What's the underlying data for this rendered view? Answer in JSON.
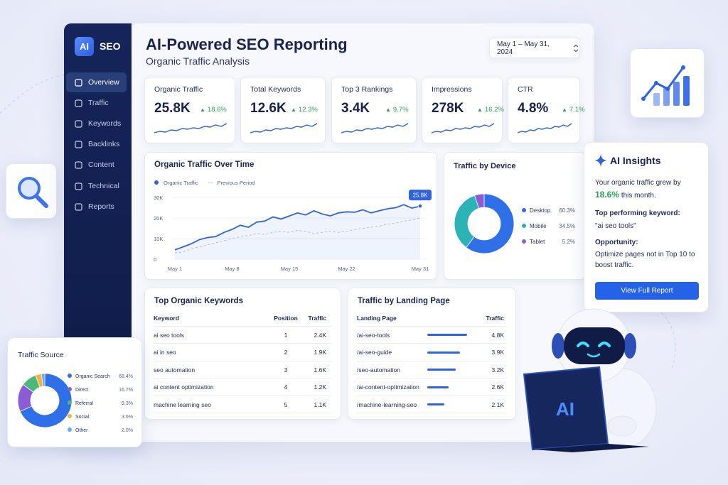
{
  "sidebar": {
    "logo": "AI",
    "brand": "SEO",
    "nav": [
      "Overview",
      "Traffic",
      "Keywords",
      "Backlinks",
      "Content",
      "Technical",
      "Reports"
    ]
  },
  "header": {
    "title": "AI-Powered SEO Reporting",
    "subtitle": "Organic Traffic Analysis",
    "date_range": "May 1 – May 31, 2024"
  },
  "kpis": [
    {
      "label": "Organic Traffic",
      "value": "25.8K",
      "change": "18.6%"
    },
    {
      "label": "Total Keywords",
      "value": "12.6K",
      "change": "12.3%"
    },
    {
      "label": "Top 3 Rankings",
      "value": "3.4K",
      "change": "9.7%"
    },
    {
      "label": "Impressions",
      "value": "278K",
      "change": "16.2%"
    },
    {
      "label": "CTR",
      "value": "4.8%",
      "change": "7.1%"
    }
  ],
  "chart_data": [
    {
      "type": "line",
      "title": "Organic Traffic Over Time",
      "categories": [
        "May 1",
        null,
        null,
        null,
        null,
        null,
        null,
        "May 8",
        null,
        null,
        null,
        null,
        null,
        null,
        "May 15",
        null,
        null,
        null,
        null,
        null,
        null,
        "May 22",
        null,
        null,
        null,
        null,
        null,
        null,
        null,
        null,
        "May 31"
      ],
      "series": [
        {
          "name": "Organic Traffic",
          "color": "#2f63e0",
          "values": [
            4500,
            6000,
            7500,
            9500,
            10500,
            11000,
            13000,
            14500,
            16500,
            15500,
            18000,
            18500,
            20500,
            19500,
            21000,
            22500,
            21500,
            23500,
            22000,
            21000,
            22500,
            23000,
            22800,
            24000,
            22500,
            23500,
            24500,
            25000,
            26500,
            24800,
            25800
          ]
        },
        {
          "name": "Previous Period",
          "color": "#b5bccc",
          "dashed": true,
          "values": [
            3000,
            3500,
            5000,
            6000,
            7000,
            8000,
            9000,
            10000,
            11000,
            11500,
            12500,
            12000,
            13000,
            13500,
            13000,
            14000,
            13500,
            12500,
            13000,
            13500,
            13000,
            13500,
            14500,
            15000,
            15500,
            16000,
            17000,
            17500,
            18500,
            19000,
            20000
          ]
        }
      ],
      "annotation": "25.8K",
      "ylim": [
        0,
        30000
      ],
      "yticks": [
        0,
        {
          "value": 10000,
          "label": "10K"
        },
        {
          "value": 20000,
          "label": "20K"
        },
        {
          "value": 30000,
          "label": "30K"
        }
      ],
      "grid": true
    },
    {
      "type": "pie",
      "title": "Traffic by Device",
      "categories": [
        "Desktop",
        "Mobile",
        "Tablet"
      ],
      "values": [
        60.3,
        34.5,
        5.2
      ],
      "value_labels": [
        "60.3%",
        "34.5%",
        "5.2%"
      ],
      "colors": [
        "#2f6fe8",
        "#2bb3b8",
        "#8b5cd6"
      ],
      "donut": true
    },
    {
      "type": "pie",
      "title": "Traffic Source",
      "categories": [
        "Organic Search",
        "Direct",
        "Referral",
        "Social",
        "Other"
      ],
      "values": [
        68.4,
        16.7,
        9.3,
        3.6,
        2.0
      ],
      "value_labels": [
        "68.4%",
        "16.7%",
        "9.3%",
        "3.6%",
        "2.0%"
      ],
      "colors": [
        "#2f6fe8",
        "#8b5cd6",
        "#4cb87a",
        "#f2b33d",
        "#6aa6f2"
      ],
      "donut": true
    }
  ],
  "insights": {
    "title": "AI Insights",
    "growth_text": "Your organic traffic grew by",
    "growth_value": "18.6%",
    "growth_suffix": "this month.",
    "keyword_label": "Top performing keyword:",
    "keyword": "\"ai seo tools\"",
    "opportunity_label": "Opportunity:",
    "opportunity": "Optimize pages not in Top 10 to boost traffic.",
    "button": "View Full Report"
  },
  "keywords_table": {
    "title": "Top Organic Keywords",
    "columns": [
      "Keyword",
      "Position",
      "Traffic"
    ],
    "rows": [
      [
        "ai seo tools",
        "1",
        "2.4K"
      ],
      [
        "ai in seo",
        "2",
        "1.9K"
      ],
      [
        "seo automation",
        "3",
        "1.6K"
      ],
      [
        "ai content optimization",
        "4",
        "1.2K"
      ],
      [
        "machine learning seo",
        "5",
        "1.1K"
      ]
    ]
  },
  "landing_table": {
    "title": "Traffic by Landing Page",
    "columns": [
      "Landing Page",
      "Traffic"
    ],
    "rows": [
      [
        "/ai-seo-tools",
        "4.8K"
      ],
      [
        "/ai-seo-guide",
        "3.9K"
      ],
      [
        "/seo-automation",
        "3.2K"
      ],
      [
        "/ai-content-optimization",
        "2.6K"
      ],
      [
        "/machine-learning-seo",
        "2.1K"
      ]
    ]
  },
  "robot": {
    "screen_text": "AI"
  }
}
